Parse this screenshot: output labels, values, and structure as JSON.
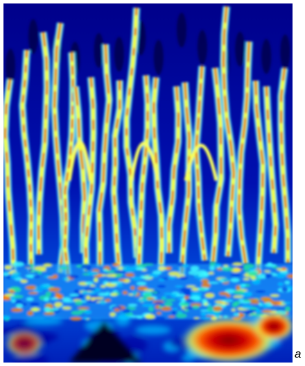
{
  "label": "a"
}
